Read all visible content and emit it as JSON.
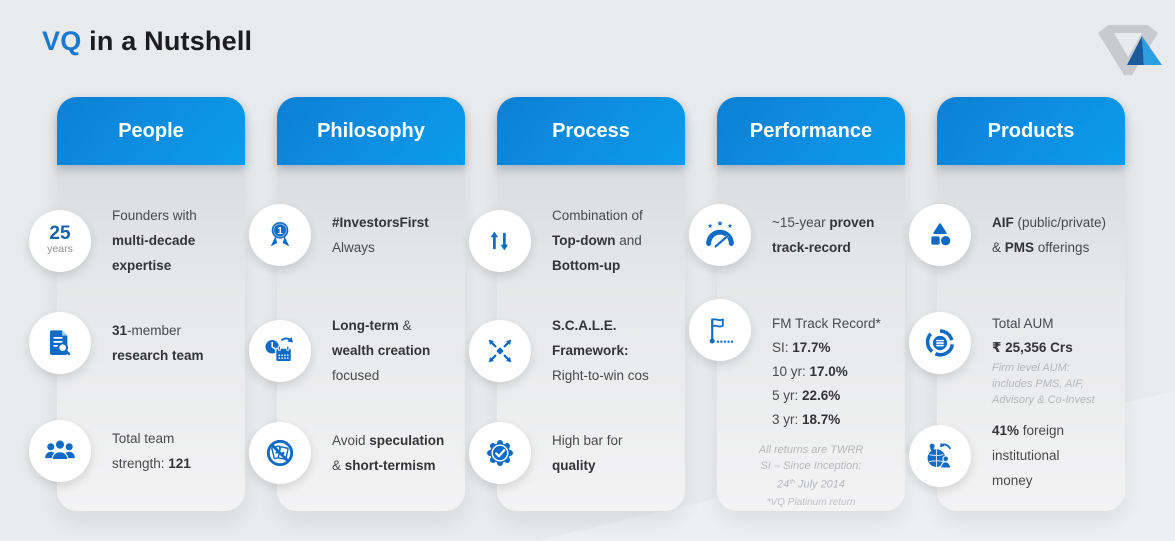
{
  "title": {
    "brand": "VQ",
    "rest": " in a Nutshell"
  },
  "colors": {
    "brand_blue": "#1879d2",
    "header_blue_start": "#0d7fd4",
    "header_blue_end": "#0a9cec",
    "icon_blue": "#0f6bc5",
    "logo_gray": "#c8cacd",
    "logo_dark_blue": "#1a5b9e",
    "logo_light_blue": "#2d9fe0"
  },
  "logo": {
    "name": "vq-logo"
  },
  "cards": {
    "people": {
      "header": "People",
      "badge": {
        "number": "25",
        "unit": "years"
      },
      "row1": [
        [
          {
            "t": "Founders with"
          }
        ],
        [
          {
            "t": "multi-decade",
            "b": true
          }
        ],
        [
          {
            "t": "expertise",
            "b": true
          }
        ]
      ],
      "row2": [
        [
          {
            "t": "31",
            "b": true
          },
          {
            "t": "-member"
          }
        ],
        [
          {
            "t": "research team",
            "b": true
          }
        ]
      ],
      "row3": [
        [
          {
            "t": "Total team"
          }
        ],
        [
          {
            "t": "strength: "
          },
          {
            "t": "121",
            "b": true
          }
        ]
      ],
      "icons": [
        "years-badge",
        "document-search-icon",
        "team-icon"
      ]
    },
    "philosophy": {
      "header": "Philosophy",
      "row1": [
        [
          {
            "t": "#InvestorsFirst",
            "b": true
          }
        ],
        [
          {
            "t": "Always"
          }
        ]
      ],
      "row2": [
        [
          {
            "t": "Long-term",
            "b": true
          },
          {
            "t": " &"
          }
        ],
        [
          {
            "t": "wealth creation",
            "b": true
          }
        ],
        [
          {
            "t": "focused"
          }
        ]
      ],
      "row3": [
        [
          {
            "t": "Avoid "
          },
          {
            "t": "speculation",
            "b": true
          }
        ],
        [
          {
            "t": "& "
          },
          {
            "t": "short-termism",
            "b": true
          }
        ]
      ],
      "icons": [
        "medal-first-icon",
        "long-term-icon",
        "no-speculation-icon"
      ]
    },
    "process": {
      "header": "Process",
      "row1": [
        [
          {
            "t": "Combination of"
          }
        ],
        [
          {
            "t": "Top-down",
            "b": true
          },
          {
            "t": " and"
          }
        ],
        [
          {
            "t": "Bottom-up",
            "b": true
          }
        ]
      ],
      "row2": [
        [
          {
            "t": "S.C.A.L.E.",
            "b": true
          }
        ],
        [
          {
            "t": "Framework:",
            "b": true
          }
        ],
        [
          {
            "t": "Right-to-win cos"
          }
        ]
      ],
      "row3": [
        [
          {
            "t": "High bar for"
          }
        ],
        [
          {
            "t": "quality",
            "b": true
          }
        ]
      ],
      "icons": [
        "top-down-bottom-up-icon",
        "scale-expand-icon",
        "quality-badge-icon"
      ]
    },
    "performance": {
      "header": "Performance",
      "row1": [
        [
          {
            "t": "~15-year "
          },
          {
            "t": "proven",
            "b": true
          }
        ],
        [
          {
            "t": "track-record",
            "b": true
          }
        ]
      ],
      "row2": [
        [
          {
            "t": "FM Track Record*"
          }
        ],
        [
          {
            "t": "SI: "
          },
          {
            "t": "17.7%",
            "b": true
          }
        ],
        [
          {
            "t": "10 yr: "
          },
          {
            "t": "17.0%",
            "b": true
          }
        ],
        [
          {
            "t": "5 yr: "
          },
          {
            "t": "22.6%",
            "b": true
          }
        ],
        [
          {
            "t": "3 yr: "
          },
          {
            "t": "18.7%",
            "b": true
          }
        ]
      ],
      "footnote": [
        [
          {
            "t": "All returns are TWRR"
          }
        ],
        [
          {
            "t": "SI – Since Inception:"
          }
        ],
        [
          {
            "t": "24"
          },
          {
            "t": "th",
            "sup": true
          },
          {
            "t": " July 2014"
          }
        ]
      ],
      "footnote2": [
        [
          {
            "t": "*VQ Platinum return"
          }
        ]
      ],
      "icons": [
        "gauge-stars-icon",
        "milestone-flag-icon"
      ]
    },
    "products": {
      "header": "Products",
      "row1": [
        [
          {
            "t": "AIF",
            "b": true
          },
          {
            "t": " (public/private)"
          }
        ],
        [
          {
            "t": "& "
          },
          {
            "t": "PMS",
            "b": true
          },
          {
            "t": " offerings"
          }
        ]
      ],
      "row2": [
        [
          {
            "t": "Total AUM"
          }
        ],
        [
          {
            "t": "₹ 25,356 Crs",
            "b": true
          }
        ]
      ],
      "row2_note": [
        [
          {
            "t": "Firm level AUM:"
          }
        ],
        [
          {
            "t": "includes PMS, AIF,"
          }
        ],
        [
          {
            "t": "Advisory & Co-Invest"
          }
        ]
      ],
      "row3": [
        [
          {
            "t": "41%",
            "b": true
          },
          {
            "t": " foreign"
          }
        ],
        [
          {
            "t": "institutional"
          }
        ],
        [
          {
            "t": "money"
          }
        ]
      ],
      "icons": [
        "shapes-icon",
        "aum-pie-icon",
        "globe-investor-icon"
      ]
    }
  }
}
